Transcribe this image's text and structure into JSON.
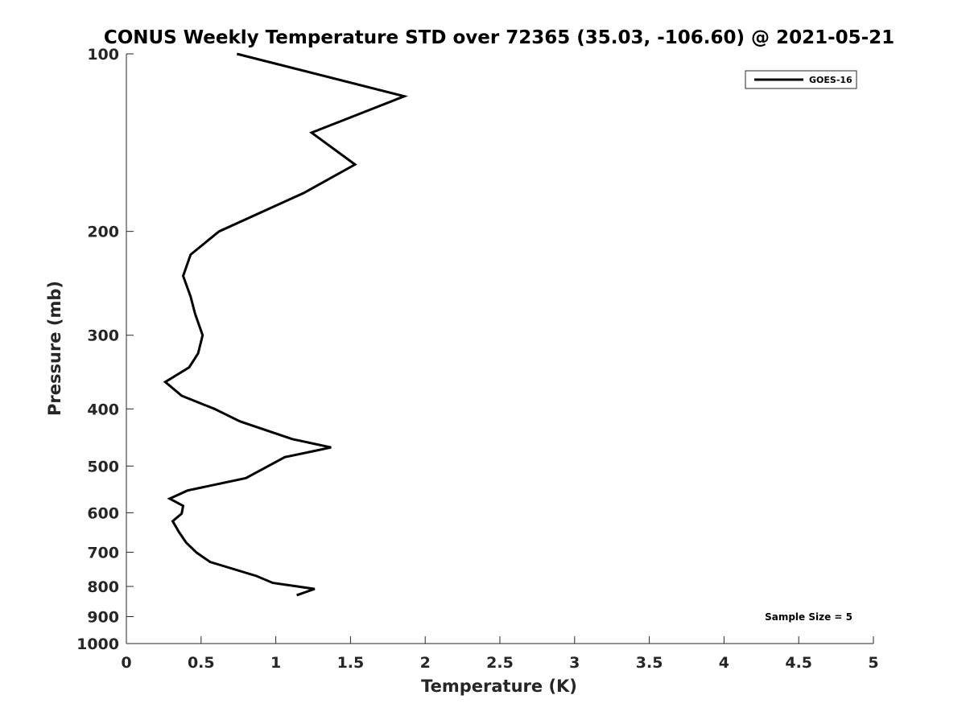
{
  "chart_data": {
    "type": "line",
    "title": "CONUS Weekly Temperature STD over 72365 (35.03, -106.60) @ 2021-05-21",
    "xlabel": "Temperature (K)",
    "ylabel": "Pressure (mb)",
    "xlim": [
      0,
      5
    ],
    "ylim": [
      100,
      1000
    ],
    "y_scale": "log",
    "y_reversed": true,
    "x_ticks": [
      "0",
      "0.5",
      "1",
      "1.5",
      "2",
      "2.5",
      "3",
      "3.5",
      "4",
      "4.5",
      "5"
    ],
    "y_ticks": [
      "100",
      "200",
      "300",
      "400",
      "500",
      "600",
      "700",
      "800",
      "900",
      "1000"
    ],
    "grid": false,
    "legend_position": "top-right",
    "annotation": "Sample Size = 5",
    "series": [
      {
        "name": "GOES-16",
        "color": "#000000",
        "x": [
          0.74,
          1.86,
          1.24,
          1.53,
          1.19,
          0.62,
          0.43,
          0.38,
          0.43,
          0.46,
          0.51,
          0.48,
          0.42,
          0.26,
          0.37,
          0.59,
          0.76,
          1.11,
          1.37,
          1.06,
          0.8,
          0.41,
          0.29,
          0.38,
          0.37,
          0.31,
          0.35,
          0.4,
          0.47,
          0.56,
          0.87,
          0.98,
          1.26,
          1.14
        ],
        "y": [
          100,
          118,
          136,
          154,
          172,
          200,
          219,
          238,
          258,
          276,
          300,
          322,
          340,
          360,
          380,
          400,
          420,
          450,
          465,
          483,
          524,
          550,
          568,
          584,
          602,
          620,
          646,
          674,
          701,
          727,
          768,
          789,
          808,
          828
        ]
      }
    ]
  }
}
